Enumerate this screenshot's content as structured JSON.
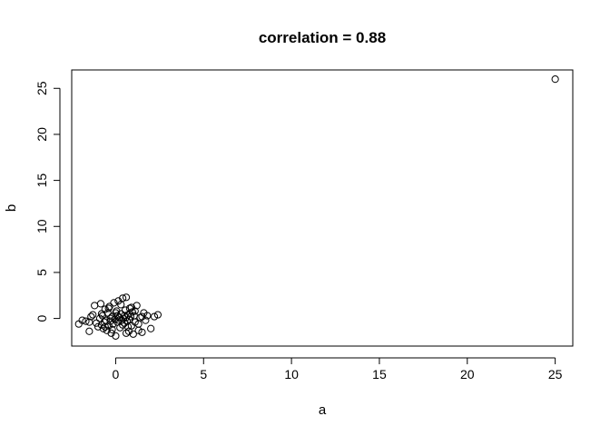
{
  "chart_data": {
    "type": "scatter",
    "title": "correlation = 0.88",
    "xlabel": "a",
    "ylabel": "b",
    "xlim": [
      -2.5,
      26
    ],
    "ylim": [
      -3,
      27
    ],
    "xticks": [
      0,
      5,
      10,
      15,
      20,
      25
    ],
    "yticks": [
      0,
      5,
      10,
      15,
      20,
      25
    ],
    "xtick_labels": [
      "0",
      "5",
      "10",
      "15",
      "20",
      "25"
    ],
    "ytick_labels": [
      "0",
      "5",
      "10",
      "15",
      "20",
      "25"
    ],
    "grid": false,
    "marker": "open-circle",
    "colors": {
      "points": "#000000",
      "axes": "#000000",
      "background": "#ffffff"
    },
    "series": [
      {
        "points": [
          {
            "x": 25.0,
            "y": 26.0
          },
          {
            "x": -2.1,
            "y": -0.6
          },
          {
            "x": -1.9,
            "y": -0.2
          },
          {
            "x": -1.7,
            "y": -0.3
          },
          {
            "x": -1.5,
            "y": -1.4
          },
          {
            "x": -1.4,
            "y": 0.2
          },
          {
            "x": -1.3,
            "y": 0.4
          },
          {
            "x": -1.2,
            "y": 1.4
          },
          {
            "x": -1.1,
            "y": -0.5
          },
          {
            "x": -1.0,
            "y": -0.9
          },
          {
            "x": -0.9,
            "y": 0.0
          },
          {
            "x": -0.85,
            "y": 1.6
          },
          {
            "x": -0.8,
            "y": -0.7
          },
          {
            "x": -0.75,
            "y": 0.3
          },
          {
            "x": -0.7,
            "y": -1.1
          },
          {
            "x": -0.65,
            "y": -0.4
          },
          {
            "x": -0.6,
            "y": 1.0
          },
          {
            "x": -0.55,
            "y": -0.2
          },
          {
            "x": -0.5,
            "y": -1.3
          },
          {
            "x": -0.45,
            "y": 0.6
          },
          {
            "x": -0.4,
            "y": -0.8
          },
          {
            "x": -0.35,
            "y": 1.3
          },
          {
            "x": -0.3,
            "y": -0.3
          },
          {
            "x": -0.25,
            "y": -1.6
          },
          {
            "x": -0.2,
            "y": 0.2
          },
          {
            "x": -0.15,
            "y": -0.6
          },
          {
            "x": -0.1,
            "y": 1.7
          },
          {
            "x": -0.05,
            "y": -0.1
          },
          {
            "x": 0.0,
            "y": -1.9
          },
          {
            "x": 0.05,
            "y": 0.8
          },
          {
            "x": 0.1,
            "y": -0.4
          },
          {
            "x": 0.15,
            "y": 1.9
          },
          {
            "x": 0.2,
            "y": 0.1
          },
          {
            "x": 0.25,
            "y": -1.0
          },
          {
            "x": 0.3,
            "y": 0.5
          },
          {
            "x": 0.35,
            "y": -0.2
          },
          {
            "x": 0.4,
            "y": 2.2
          },
          {
            "x": 0.45,
            "y": 0.0
          },
          {
            "x": 0.5,
            "y": -0.5
          },
          {
            "x": 0.55,
            "y": 0.9
          },
          {
            "x": 0.6,
            "y": 2.3
          },
          {
            "x": 0.65,
            "y": -0.3
          },
          {
            "x": 0.7,
            "y": 0.4
          },
          {
            "x": 0.75,
            "y": -1.4
          },
          {
            "x": 0.8,
            "y": 1.1
          },
          {
            "x": 0.85,
            "y": 0.2
          },
          {
            "x": 0.9,
            "y": -0.8
          },
          {
            "x": 0.95,
            "y": 0.7
          },
          {
            "x": 1.0,
            "y": -1.7
          },
          {
            "x": 1.05,
            "y": 0.3
          },
          {
            "x": 1.1,
            "y": -0.4
          },
          {
            "x": 1.2,
            "y": 1.4
          },
          {
            "x": 1.3,
            "y": -0.6
          },
          {
            "x": 1.4,
            "y": 0.1
          },
          {
            "x": 1.5,
            "y": -1.5
          },
          {
            "x": 1.6,
            "y": 0.6
          },
          {
            "x": 1.7,
            "y": -0.2
          },
          {
            "x": 1.8,
            "y": 0.3
          },
          {
            "x": 2.0,
            "y": -1.1
          },
          {
            "x": 2.2,
            "y": 0.2
          },
          {
            "x": 2.4,
            "y": 0.4
          },
          {
            "x": 0.2,
            "y": -0.2
          },
          {
            "x": 0.4,
            "y": -0.7
          },
          {
            "x": 0.6,
            "y": 0.1
          },
          {
            "x": -0.3,
            "y": 0.0
          },
          {
            "x": 0.1,
            "y": 0.3
          },
          {
            "x": 0.8,
            "y": -0.1
          },
          {
            "x": 1.1,
            "y": 0.8
          },
          {
            "x": -0.6,
            "y": -0.9
          },
          {
            "x": 0.3,
            "y": 1.5
          },
          {
            "x": -0.2,
            "y": -1.2
          },
          {
            "x": 0.7,
            "y": -0.9
          },
          {
            "x": 1.5,
            "y": 0.2
          },
          {
            "x": -0.8,
            "y": 0.5
          },
          {
            "x": 0.0,
            "y": 0.6
          },
          {
            "x": 0.9,
            "y": 1.2
          },
          {
            "x": 1.3,
            "y": -1.3
          },
          {
            "x": -1.5,
            "y": -0.4
          },
          {
            "x": 0.5,
            "y": 0.3
          },
          {
            "x": 0.6,
            "y": -1.6
          },
          {
            "x": -0.4,
            "y": 1.1
          }
        ]
      }
    ]
  }
}
